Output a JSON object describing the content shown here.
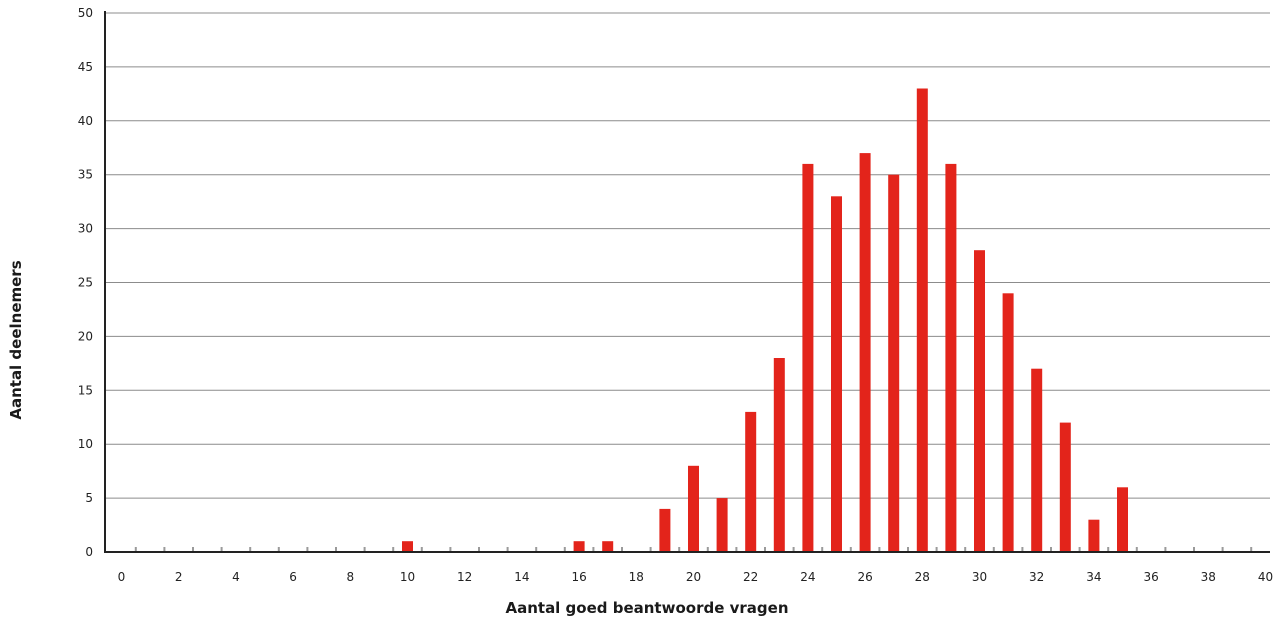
{
  "chart_data": {
    "type": "bar",
    "xlabel": "Aantal goed beantwoorde vragen",
    "ylabel": "Aantal deelnemers",
    "x": [
      10,
      16,
      17,
      19,
      20,
      21,
      22,
      23,
      24,
      25,
      26,
      27,
      28,
      29,
      30,
      31,
      32,
      33,
      34,
      35
    ],
    "values": [
      1,
      1,
      1,
      4,
      8,
      5,
      13,
      18,
      36,
      33,
      37,
      35,
      43,
      36,
      28,
      24,
      17,
      12,
      3,
      6
    ],
    "xlim": [
      0,
      40
    ],
    "ylim": [
      0,
      50
    ],
    "xticks": [
      "0",
      "2",
      "4",
      "6",
      "8",
      "10",
      "12",
      "14",
      "16",
      "18",
      "20",
      "22",
      "24",
      "26",
      "28",
      "30",
      "32",
      "34",
      "36",
      "38",
      "40"
    ],
    "yticks": [
      "0",
      "5",
      "10",
      "15",
      "20",
      "25",
      "30",
      "35",
      "40",
      "45",
      "50"
    ],
    "grid": true,
    "bar_color": "#e3241b"
  }
}
